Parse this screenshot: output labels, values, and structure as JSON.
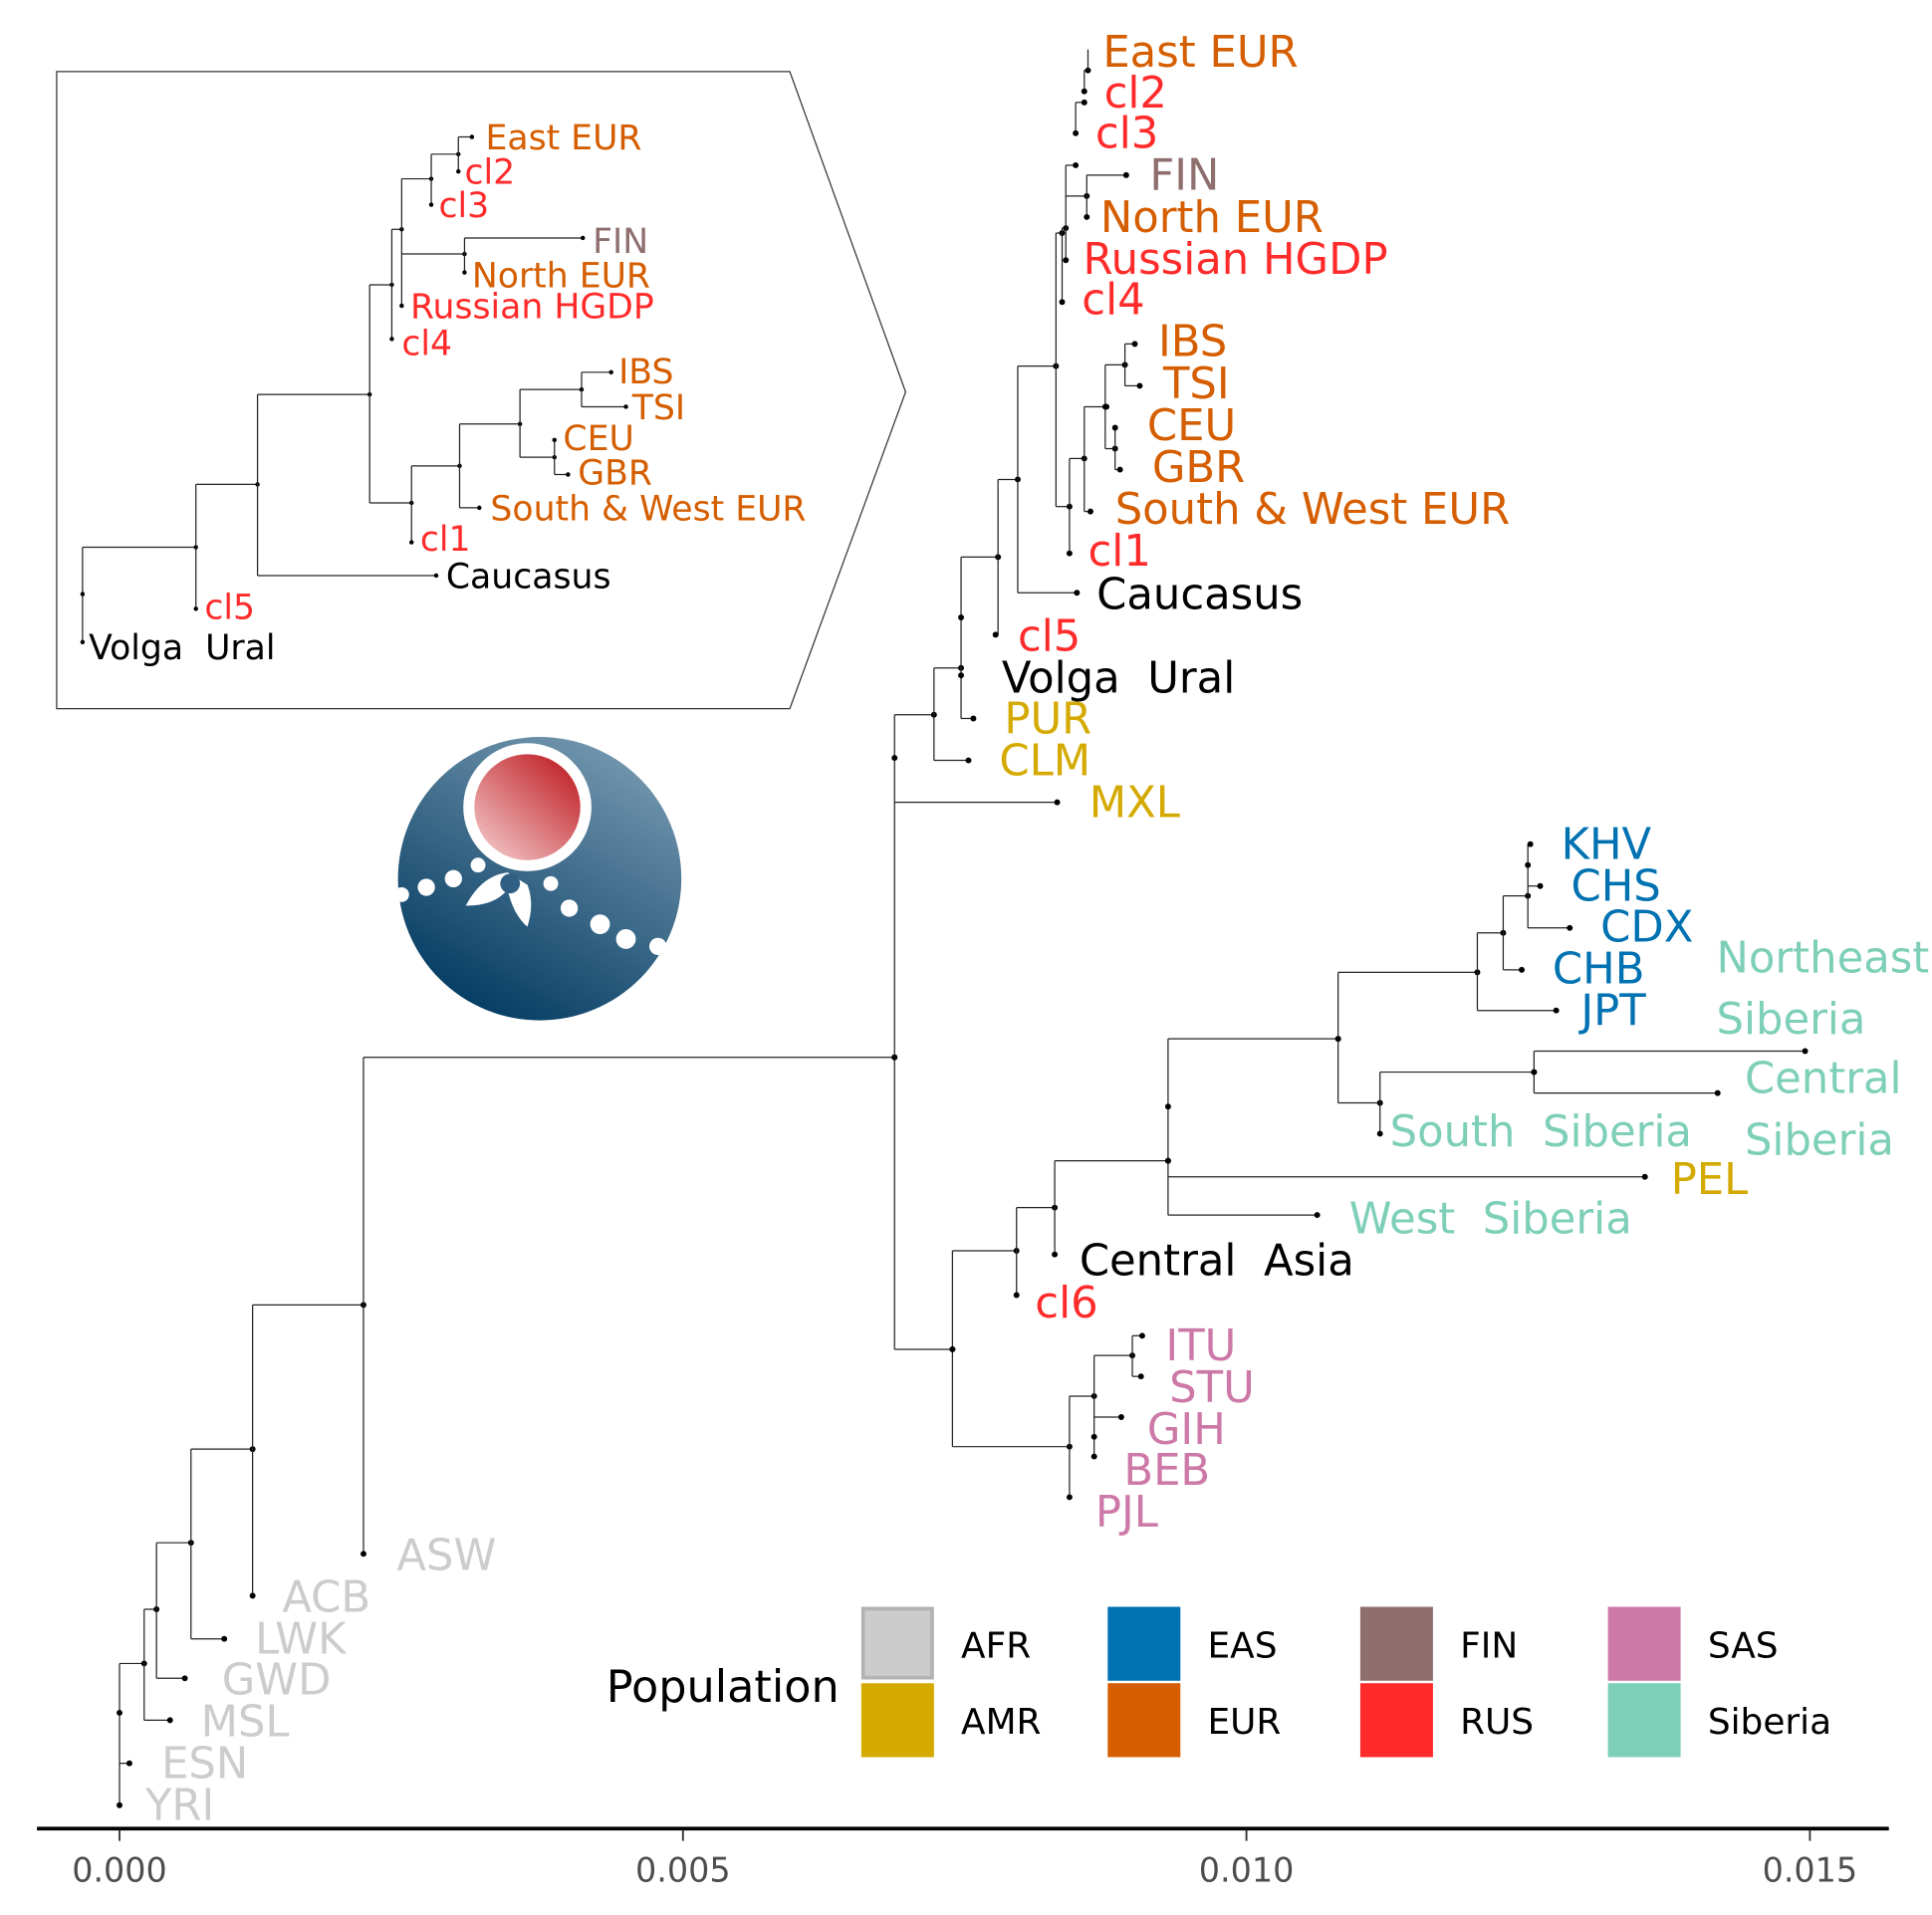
{
  "colors": {
    "AFR": "#cccccc",
    "AMR": "#d4aa00",
    "EAS": "#0072b2",
    "EUR": "#d55e00",
    "FIN": "#8f6e6e",
    "RUS": "#ff2b2b",
    "SAS": "#cc79a7",
    "Siberia": "#7ecfb8",
    "Other": "#000000"
  },
  "tree": {
    "tips": [
      {
        "label": "East EUR",
        "group": "EUR",
        "x": 0.00859
      },
      {
        "label": "cl2",
        "group": "RUS",
        "x": 0.00856
      },
      {
        "label": "cl3",
        "group": "RUS",
        "x": 0.00849
      },
      {
        "label": "FIN",
        "group": "FIN",
        "x": 0.00893
      },
      {
        "label": "North EUR",
        "group": "EUR",
        "x": 0.00858
      },
      {
        "label": "Russian HGDP",
        "group": "RUS",
        "x": 0.0084
      },
      {
        "label": "cl4",
        "group": "RUS",
        "x": 0.00836
      },
      {
        "label": "IBS",
        "group": "EUR",
        "x": 0.00901
      },
      {
        "label": "TSI",
        "group": "EUR",
        "x": 0.00905
      },
      {
        "label": "CEU",
        "group": "EUR",
        "x": 0.00883
      },
      {
        "label": "GBR",
        "group": "EUR",
        "x": 0.00888
      },
      {
        "label": "South & West EUR",
        "group": "EUR",
        "x": 0.00862
      },
      {
        "label": "cl1",
        "group": "RUS",
        "x": 0.00843
      },
      {
        "label": "Caucasus",
        "group": "Other",
        "x": 0.0085
      },
      {
        "label": "cl5",
        "group": "RUS",
        "x": 0.0078
      },
      {
        "label": "Volga  Ural",
        "group": "Other",
        "x": 0.00747
      },
      {
        "label": "PUR",
        "group": "AMR",
        "x": 0.00758
      },
      {
        "label": "CLM",
        "group": "AMR",
        "x": 0.00753
      },
      {
        "label": "MXL",
        "group": "AMR",
        "x": 0.00832
      },
      {
        "label": "KHV",
        "group": "EAS",
        "x": 0.01252
      },
      {
        "label": "CHS",
        "group": "EAS",
        "x": 0.01261
      },
      {
        "label": "CDX",
        "group": "EAS",
        "x": 0.01287
      },
      {
        "label": "CHB",
        "group": "EAS",
        "x": 0.01244
      },
      {
        "label": "JPT",
        "group": "EAS",
        "x": 0.01275
      },
      {
        "label": "Northeast\nSiberia",
        "group": "Siberia",
        "x": 0.01496
      },
      {
        "label": "Central\nSiberia",
        "group": "Siberia",
        "x": 0.01418
      },
      {
        "label": "South  Siberia",
        "group": "Siberia",
        "x": 0.01119
      },
      {
        "label": "PEL",
        "group": "AMR",
        "x": 0.01354
      },
      {
        "label": "West  Siberia",
        "group": "Siberia",
        "x": 0.01063
      },
      {
        "label": "Central  Asia",
        "group": "Other",
        "x": 0.0083
      },
      {
        "label": "cl6",
        "group": "RUS",
        "x": 0.00796
      },
      {
        "label": "ITU",
        "group": "SAS",
        "x": 0.00908
      },
      {
        "label": "STU",
        "group": "SAS",
        "x": 0.00906
      },
      {
        "label": "GIH",
        "group": "SAS",
        "x": 0.00889
      },
      {
        "label": "BEB",
        "group": "SAS",
        "x": 0.00865
      },
      {
        "label": "PJL",
        "group": "SAS",
        "x": 0.00843
      },
      {
        "label": "ASW",
        "group": "AFR",
        "x": 0.00216
      },
      {
        "label": "ACB",
        "group": "AFR",
        "x": 0.00118
      },
      {
        "label": "LWK",
        "group": "AFR",
        "x": 0.00093
      },
      {
        "label": "GWD",
        "group": "AFR",
        "x": 0.00058
      },
      {
        "label": "MSL",
        "group": "AFR",
        "x": 0.00045
      },
      {
        "label": "ESN",
        "group": "AFR",
        "x": 9e-05
      },
      {
        "label": "YRI",
        "group": "AFR",
        "x": 0.0
      }
    ]
  },
  "axis": {
    "range": [
      0.0,
      0.0157
    ],
    "ticks": [
      {
        "value": 0.0,
        "label": "0.000"
      },
      {
        "value": 0.005,
        "label": "0.005"
      },
      {
        "value": 0.01,
        "label": "0.010"
      },
      {
        "value": 0.015,
        "label": "0.015"
      }
    ]
  },
  "inset": {
    "labels": [
      {
        "label": "East EUR",
        "group": "EUR"
      },
      {
        "label": "cl2",
        "group": "RUS"
      },
      {
        "label": "cl3",
        "group": "RUS"
      },
      {
        "label": "FIN",
        "group": "FIN"
      },
      {
        "label": "North EUR",
        "group": "EUR"
      },
      {
        "label": "Russian HGDP",
        "group": "RUS"
      },
      {
        "label": "cl4",
        "group": "RUS"
      },
      {
        "label": "IBS",
        "group": "EUR"
      },
      {
        "label": "TSI",
        "group": "EUR"
      },
      {
        "label": "CEU",
        "group": "EUR"
      },
      {
        "label": "GBR",
        "group": "EUR"
      },
      {
        "label": "South & West EUR",
        "group": "EUR"
      },
      {
        "label": "cl1",
        "group": "RUS"
      },
      {
        "label": "Caucasus",
        "group": "Other"
      },
      {
        "label": "cl5",
        "group": "RUS"
      },
      {
        "label": "Volga  Ural",
        "group": "Other"
      }
    ]
  },
  "legend": {
    "title": "Population",
    "items": [
      {
        "label": "AFR",
        "group": "AFR"
      },
      {
        "label": "AMR",
        "group": "AMR"
      },
      {
        "label": "EAS",
        "group": "EAS"
      },
      {
        "label": "EUR",
        "group": "EUR"
      },
      {
        "label": "FIN",
        "group": "FIN"
      },
      {
        "label": "RUS",
        "group": "RUS"
      },
      {
        "label": "SAS",
        "group": "SAS"
      },
      {
        "label": "Siberia",
        "group": "Siberia"
      }
    ]
  },
  "logo": {
    "icon": "pomegranate-logo-icon",
    "colors": {
      "circle": "#2f5f84",
      "fruit": "#c62a2f"
    }
  }
}
